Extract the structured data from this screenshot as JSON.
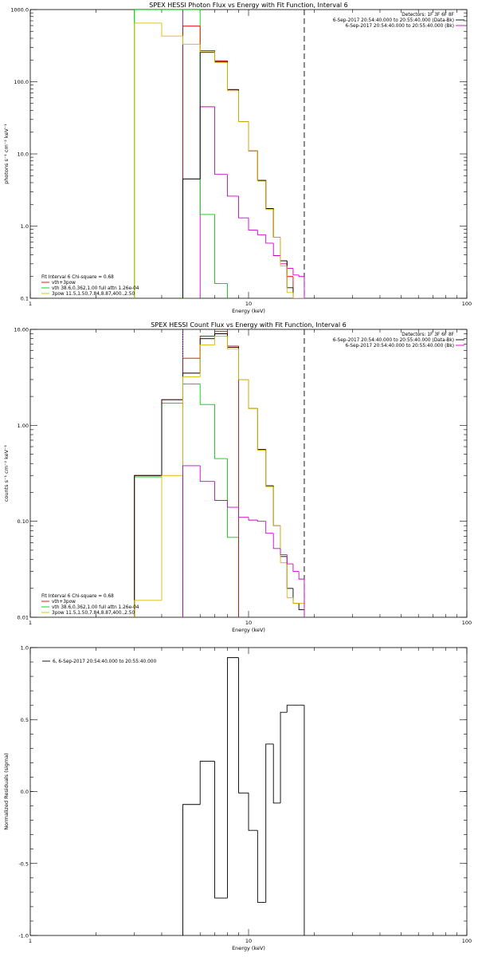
{
  "chart_data": [
    {
      "type": "line",
      "title": "SPEX HESSI Photon Flux vs Energy with Fit Function, Interval 6",
      "xlabel": "Energy (keV)",
      "ylabel": "photons s⁻¹ cm⁻² keV⁻¹",
      "xscale": "log",
      "yscale": "log",
      "xlim": [
        1,
        100
      ],
      "ylim": [
        0.1,
        1000
      ],
      "x_ticks": [
        {
          "v": 1,
          "label": "1"
        },
        {
          "v": 10,
          "label": "10"
        },
        {
          "v": 100,
          "label": "100"
        }
      ],
      "y_ticks": [
        {
          "v": 0.1,
          "label": "0.1"
        },
        {
          "v": 1,
          "label": "1.0"
        },
        {
          "v": 10,
          "label": "10.0"
        },
        {
          "v": 100,
          "label": "100.0"
        },
        {
          "v": 1000,
          "label": "1000.0"
        }
      ],
      "legend_top_right": [
        {
          "text": "Detectors: 1F 3F 6F 8F",
          "color": "#000000",
          "line": false
        },
        {
          "text": "6-Sep-2017 20:54:40.000 to 20:55:40.000 (Data-Bk)",
          "color": "#000000",
          "line": true
        },
        {
          "text": "6-Sep-2017 20:54:40.000 to 20:55:40.000 (Bk)",
          "color": "#cc00cc",
          "line": true
        }
      ],
      "legend_bottom_left": [
        {
          "text": "Fit Interval 6   Chi-square = 0.68",
          "color": "#000000",
          "line": false
        },
        {
          "text": "vth+3pow",
          "color": "#dd0000",
          "line": true
        },
        {
          "text": "vth 38.6,0.362,1.00  full attn 1.26e-04",
          "color": "#00cc00",
          "line": true
        },
        {
          "text": "3pow 11.5,1.50,7.84,8.87,400.,2.50",
          "color": "#ddbb00",
          "line": true
        }
      ],
      "vlines": [
        {
          "x": 3.0,
          "color": "#00cc00",
          "style": "solid"
        },
        {
          "x": 5.0,
          "color": "#cc00cc",
          "style": "solid"
        },
        {
          "x": 18.0,
          "color": "#000000",
          "style": "dashed"
        }
      ],
      "series": [
        {
          "color": "#cc00cc",
          "bins": [
            5,
            6,
            7,
            8,
            9,
            10,
            11,
            12,
            13,
            14,
            15,
            16,
            17,
            18
          ],
          "values": [
            0.1,
            45,
            5.2,
            2.6,
            1.3,
            0.88,
            0.76,
            0.58,
            0.39,
            0.3,
            0.26,
            0.21,
            0.2
          ]
        },
        {
          "color": "#00cc00",
          "bins": [
            3,
            4,
            5,
            6,
            7,
            8
          ],
          "values": [
            1000,
            1000,
            1000,
            1.45,
            0.16
          ]
        },
        {
          "color": "#dd0000",
          "bins": [
            5,
            6,
            7,
            8,
            9,
            10,
            11,
            12,
            13,
            14,
            15,
            16,
            17,
            18
          ],
          "values": [
            590,
            270,
            195,
            78,
            28,
            11,
            4.3,
            1.75,
            0.7,
            0.33,
            0.2,
            0.1,
            0.1
          ]
        },
        {
          "color": "#000000",
          "bins": [
            5,
            6,
            7,
            8,
            9,
            10,
            11,
            12,
            13,
            14,
            15,
            16,
            17,
            18
          ],
          "values": [
            4.5,
            255,
            190,
            78,
            28,
            11,
            4.3,
            1.75,
            0.7,
            0.33,
            0.14,
            0.1,
            0.1
          ]
        },
        {
          "color": "#ddbb00",
          "bins": [
            3,
            4,
            5,
            6,
            7,
            8,
            9,
            10,
            11,
            12,
            13,
            14,
            15,
            16,
            17,
            18
          ],
          "values": [
            650,
            430,
            330,
            260,
            185,
            75,
            28,
            11,
            4.2,
            1.7,
            0.7,
            0.28,
            0.12,
            0.1,
            0.1
          ]
        }
      ]
    },
    {
      "type": "line",
      "title": "SPEX HESSI Count Flux vs Energy with Fit Function, Interval 6",
      "xlabel": "Energy (keV)",
      "ylabel": "counts s⁻¹ cm⁻² keV⁻¹",
      "xscale": "log",
      "yscale": "log",
      "xlim": [
        1,
        100
      ],
      "ylim": [
        0.01,
        10
      ],
      "x_ticks": [
        {
          "v": 1,
          "label": "1"
        },
        {
          "v": 10,
          "label": "10"
        },
        {
          "v": 100,
          "label": "100"
        }
      ],
      "y_ticks": [
        {
          "v": 0.01,
          "label": "0.01"
        },
        {
          "v": 0.1,
          "label": "0.10"
        },
        {
          "v": 1,
          "label": "1.00"
        },
        {
          "v": 10,
          "label": "10.00"
        }
      ],
      "legend_top_right": [
        {
          "text": "Detectors: 1F 3F 6F 8F",
          "color": "#000000",
          "line": false
        },
        {
          "text": "6-Sep-2017 20:54:40.000 to 20:55:40.000 (Data-Bk)",
          "color": "#000000",
          "line": true
        },
        {
          "text": "6-Sep-2017 20:54:40.000 to 20:55:40.000 (Bk)",
          "color": "#cc00cc",
          "line": true
        }
      ],
      "legend_bottom_left": [
        {
          "text": "Fit Interval 6   Chi-square = 0.68",
          "color": "#000000",
          "line": false
        },
        {
          "text": "vth+3pow",
          "color": "#dd0000",
          "line": true
        },
        {
          "text": "vth 38.6,0.362,1.00  full attn 1.26e-04",
          "color": "#00cc00",
          "line": true
        },
        {
          "text": "3pow 11.5,1.50,7.84,8.87,400.,2.50",
          "color": "#ddbb00",
          "line": true
        }
      ],
      "vlines": [
        {
          "x": 5.0,
          "color": "#cc00cc",
          "style": "solid"
        },
        {
          "x": 5.0,
          "color": "#000000",
          "style": "dotted"
        },
        {
          "x": 18.0,
          "color": "#000000",
          "style": "dashed"
        }
      ],
      "series": [
        {
          "color": "#00cc00",
          "bins": [
            3,
            4,
            5,
            6,
            7,
            8,
            9
          ],
          "values": [
            0.29,
            1.7,
            2.7,
            1.65,
            0.45,
            0.068
          ]
        },
        {
          "color": "#dd0000",
          "bins": [
            3,
            4,
            5,
            6,
            7,
            8,
            9
          ],
          "values": [
            0.3,
            1.85,
            5.0,
            8.5,
            9.5,
            6.7
          ]
        },
        {
          "color": "#000000",
          "bins": [
            3,
            4,
            5,
            6,
            7,
            8,
            9,
            10,
            11,
            12,
            13,
            14,
            15,
            16,
            17,
            18
          ],
          "values": [
            0.3,
            1.85,
            3.5,
            8.0,
            9.0,
            6.5,
            3.0,
            1.5,
            0.56,
            0.235,
            0.09,
            0.043,
            0.02,
            0.014,
            0.012
          ]
        },
        {
          "color": "#ddbb00",
          "bins": [
            3,
            4,
            5,
            6,
            7,
            8,
            9,
            10,
            11,
            12,
            13,
            14,
            15,
            16,
            17,
            18
          ],
          "values": [
            0.015,
            0.3,
            3.2,
            6.9,
            8.5,
            6.3,
            3.0,
            1.5,
            0.55,
            0.23,
            0.09,
            0.037,
            0.016,
            0.014,
            0.014
          ]
        },
        {
          "color": "#cc00cc",
          "bins": [
            5,
            6,
            7,
            8,
            9,
            10,
            11,
            12,
            13,
            14,
            15,
            16,
            17,
            18
          ],
          "values": [
            0.38,
            0.26,
            0.165,
            0.14,
            0.11,
            0.103,
            0.1,
            0.075,
            0.052,
            0.045,
            0.036,
            0.03,
            0.025
          ]
        }
      ]
    },
    {
      "type": "line",
      "title": "",
      "xlabel": "Energy (keV)",
      "ylabel": "Normalized Residuals (sigma)",
      "xscale": "log",
      "yscale": "linear",
      "xlim": [
        1,
        100
      ],
      "ylim": [
        -1.0,
        1.0
      ],
      "x_ticks": [
        {
          "v": 1,
          "label": "1"
        },
        {
          "v": 10,
          "label": "10"
        },
        {
          "v": 100,
          "label": "100"
        }
      ],
      "y_ticks": [
        {
          "v": -1,
          "label": "-1.0"
        },
        {
          "v": -0.5,
          "label": "-0.5"
        },
        {
          "v": 0,
          "label": "0.0"
        },
        {
          "v": 0.5,
          "label": "0.5"
        },
        {
          "v": 1,
          "label": "1.0"
        }
      ],
      "legend_top_left": [
        {
          "text": "6,  6-Sep-2017 20:54:40.000 to 20:55:40.000",
          "color": "#000000",
          "line": true
        }
      ],
      "series": [
        {
          "color": "#000000",
          "bins": [
            5,
            6,
            7,
            8,
            9,
            10,
            11,
            12,
            13,
            14,
            15,
            16,
            17,
            18
          ],
          "values": [
            -0.09,
            0.21,
            -0.74,
            0.93,
            -0.01,
            -0.27,
            -0.77,
            0.33,
            -0.08,
            0.55,
            0.6,
            0.6,
            0.6
          ]
        }
      ]
    }
  ]
}
